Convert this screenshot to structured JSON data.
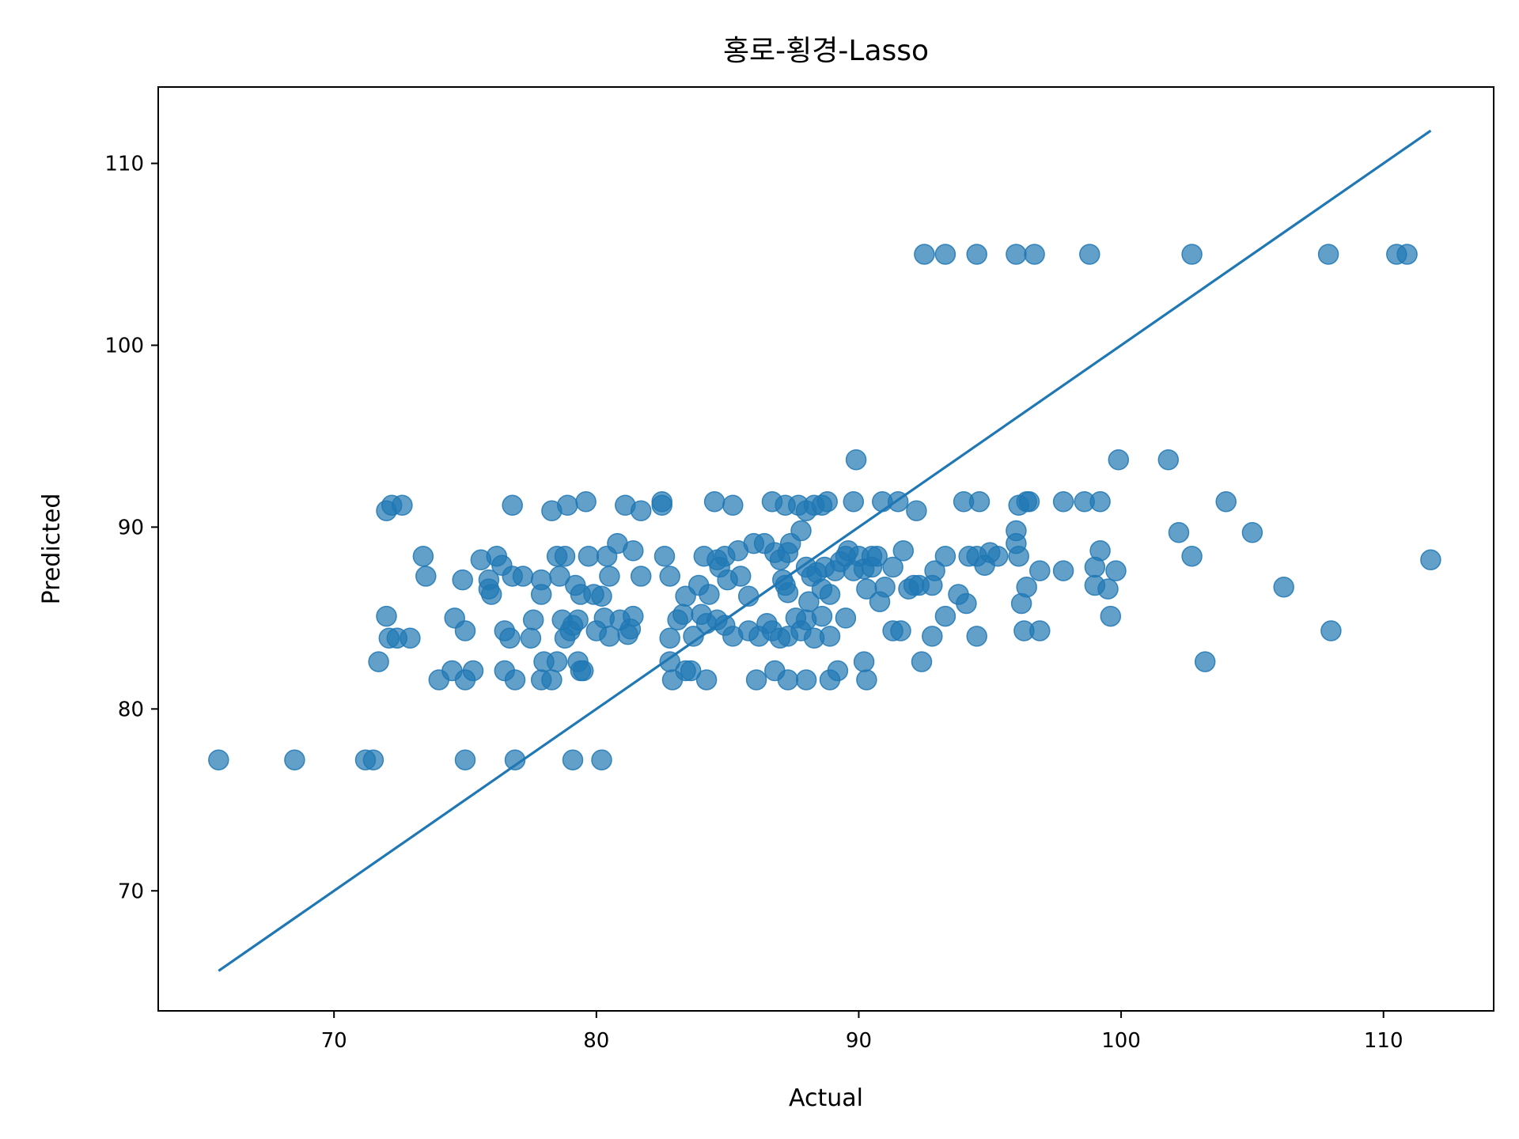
{
  "chart_data": {
    "type": "scatter",
    "title": "홍로-횡경-Lasso",
    "xlabel": "Actual",
    "ylabel": "Predicted",
    "xlim": [
      63.3,
      114.2
    ],
    "ylim": [
      63.4,
      114.2
    ],
    "xticks": [
      70,
      80,
      90,
      100,
      110
    ],
    "yticks": [
      70,
      80,
      90,
      100,
      110
    ],
    "grid": false,
    "colors": {
      "points": "#1f77b4",
      "line": "#1f77b4",
      "axes": "#000000"
    },
    "reference_line": {
      "from": [
        65.6,
        65.6
      ],
      "to": [
        111.8,
        111.8
      ]
    },
    "series": [
      {
        "points": [
          [
            65.6,
            77.2
          ],
          [
            68.5,
            77.2
          ],
          [
            71.2,
            77.2
          ],
          [
            71.5,
            77.2
          ],
          [
            75.0,
            77.2
          ],
          [
            76.9,
            77.2
          ],
          [
            79.1,
            77.2
          ],
          [
            80.2,
            77.2
          ],
          [
            92.5,
            105.0
          ],
          [
            93.3,
            105.0
          ],
          [
            94.5,
            105.0
          ],
          [
            96.0,
            105.0
          ],
          [
            96.7,
            105.0
          ],
          [
            98.8,
            105.0
          ],
          [
            102.7,
            105.0
          ],
          [
            107.9,
            105.0
          ],
          [
            110.5,
            105.0
          ],
          [
            110.9,
            105.0
          ],
          [
            72.0,
            90.9
          ],
          [
            72.2,
            91.2
          ],
          [
            72.6,
            91.2
          ],
          [
            76.8,
            91.2
          ],
          [
            78.3,
            90.9
          ],
          [
            78.9,
            91.2
          ],
          [
            79.6,
            91.4
          ],
          [
            81.1,
            91.2
          ],
          [
            81.7,
            90.9
          ],
          [
            82.5,
            91.2
          ],
          [
            82.5,
            91.4
          ],
          [
            84.5,
            91.4
          ],
          [
            85.2,
            91.2
          ],
          [
            86.7,
            91.4
          ],
          [
            87.2,
            91.2
          ],
          [
            87.7,
            91.2
          ],
          [
            88.0,
            90.9
          ],
          [
            88.3,
            91.2
          ],
          [
            88.6,
            91.2
          ],
          [
            88.8,
            91.4
          ],
          [
            89.8,
            91.4
          ],
          [
            90.9,
            91.4
          ],
          [
            91.5,
            91.4
          ],
          [
            92.2,
            90.9
          ],
          [
            94.0,
            91.4
          ],
          [
            94.6,
            91.4
          ],
          [
            96.1,
            91.2
          ],
          [
            96.4,
            91.4
          ],
          [
            96.5,
            91.4
          ],
          [
            97.8,
            91.4
          ],
          [
            98.6,
            91.4
          ],
          [
            99.2,
            91.4
          ],
          [
            104.0,
            91.4
          ],
          [
            89.9,
            93.7
          ],
          [
            99.9,
            93.7
          ],
          [
            101.8,
            93.7
          ],
          [
            73.4,
            88.4
          ],
          [
            73.5,
            87.3
          ],
          [
            74.9,
            87.1
          ],
          [
            75.6,
            88.2
          ],
          [
            75.9,
            87.1
          ],
          [
            75.9,
            86.6
          ],
          [
            76.0,
            86.3
          ],
          [
            76.2,
            88.4
          ],
          [
            76.4,
            87.9
          ],
          [
            76.8,
            87.3
          ],
          [
            77.2,
            87.3
          ],
          [
            77.9,
            87.1
          ],
          [
            77.9,
            86.3
          ],
          [
            78.5,
            88.4
          ],
          [
            78.6,
            87.3
          ],
          [
            78.8,
            88.4
          ],
          [
            79.2,
            86.8
          ],
          [
            79.4,
            86.3
          ],
          [
            79.7,
            88.4
          ],
          [
            79.9,
            86.3
          ],
          [
            80.2,
            86.2
          ],
          [
            80.4,
            88.4
          ],
          [
            80.5,
            87.3
          ],
          [
            80.8,
            89.1
          ],
          [
            81.4,
            88.7
          ],
          [
            81.7,
            87.3
          ],
          [
            82.6,
            88.4
          ],
          [
            82.8,
            87.3
          ],
          [
            83.4,
            86.2
          ],
          [
            83.9,
            86.8
          ],
          [
            84.1,
            88.4
          ],
          [
            84.3,
            86.3
          ],
          [
            84.6,
            88.2
          ],
          [
            84.7,
            87.8
          ],
          [
            84.9,
            88.4
          ],
          [
            85.0,
            87.1
          ],
          [
            85.4,
            88.7
          ],
          [
            85.5,
            87.3
          ],
          [
            85.8,
            86.2
          ],
          [
            86.0,
            89.1
          ],
          [
            86.4,
            89.1
          ],
          [
            86.8,
            88.6
          ],
          [
            87.0,
            88.2
          ],
          [
            87.1,
            87.1
          ],
          [
            87.2,
            86.8
          ],
          [
            87.3,
            86.4
          ],
          [
            87.3,
            88.6
          ],
          [
            87.4,
            89.1
          ],
          [
            87.8,
            89.8
          ],
          [
            88.0,
            87.8
          ],
          [
            88.2,
            87.3
          ],
          [
            88.4,
            87.5
          ],
          [
            88.6,
            86.6
          ],
          [
            88.7,
            87.8
          ],
          [
            88.9,
            86.3
          ],
          [
            89.1,
            87.6
          ],
          [
            89.3,
            88.1
          ],
          [
            89.5,
            88.4
          ],
          [
            89.6,
            88.7
          ],
          [
            89.8,
            87.6
          ],
          [
            90.0,
            88.4
          ],
          [
            90.2,
            87.7
          ],
          [
            90.3,
            86.6
          ],
          [
            90.5,
            88.4
          ],
          [
            90.5,
            87.8
          ],
          [
            90.7,
            88.4
          ],
          [
            90.8,
            85.9
          ],
          [
            91.0,
            86.7
          ],
          [
            91.3,
            87.8
          ],
          [
            91.7,
            88.7
          ],
          [
            91.9,
            86.6
          ],
          [
            92.1,
            86.8
          ],
          [
            92.3,
            86.8
          ],
          [
            92.8,
            86.8
          ],
          [
            92.9,
            87.6
          ],
          [
            93.3,
            88.4
          ],
          [
            93.8,
            86.3
          ],
          [
            94.1,
            85.8
          ],
          [
            94.2,
            88.4
          ],
          [
            94.5,
            88.4
          ],
          [
            94.8,
            87.9
          ],
          [
            95.0,
            88.6
          ],
          [
            95.3,
            88.4
          ],
          [
            96.0,
            89.8
          ],
          [
            96.0,
            89.1
          ],
          [
            96.1,
            88.4
          ],
          [
            96.2,
            85.8
          ],
          [
            96.4,
            86.7
          ],
          [
            96.9,
            87.6
          ],
          [
            97.8,
            87.6
          ],
          [
            99.0,
            87.8
          ],
          [
            99.0,
            86.8
          ],
          [
            99.2,
            88.7
          ],
          [
            99.5,
            86.6
          ],
          [
            99.8,
            87.6
          ],
          [
            102.2,
            89.7
          ],
          [
            102.7,
            88.4
          ],
          [
            105.0,
            89.7
          ],
          [
            106.2,
            86.7
          ],
          [
            111.8,
            88.2
          ],
          [
            72.0,
            85.1
          ],
          [
            72.1,
            83.9
          ],
          [
            72.4,
            83.9
          ],
          [
            72.9,
            83.9
          ],
          [
            71.7,
            82.6
          ],
          [
            74.6,
            85.0
          ],
          [
            75.0,
            84.3
          ],
          [
            76.5,
            84.3
          ],
          [
            76.7,
            83.9
          ],
          [
            77.6,
            84.9
          ],
          [
            77.5,
            83.9
          ],
          [
            78.7,
            84.9
          ],
          [
            78.8,
            83.9
          ],
          [
            79.0,
            84.3
          ],
          [
            79.1,
            84.6
          ],
          [
            79.3,
            84.9
          ],
          [
            80.0,
            84.3
          ],
          [
            80.3,
            85.0
          ],
          [
            80.5,
            84.0
          ],
          [
            80.9,
            84.9
          ],
          [
            81.2,
            84.1
          ],
          [
            81.3,
            84.4
          ],
          [
            81.4,
            85.1
          ],
          [
            82.8,
            83.9
          ],
          [
            83.1,
            84.9
          ],
          [
            83.3,
            85.2
          ],
          [
            83.7,
            84.0
          ],
          [
            84.0,
            85.2
          ],
          [
            84.2,
            84.7
          ],
          [
            84.6,
            84.9
          ],
          [
            84.9,
            84.6
          ],
          [
            85.2,
            84.0
          ],
          [
            85.8,
            84.3
          ],
          [
            86.2,
            84.0
          ],
          [
            86.5,
            84.7
          ],
          [
            86.7,
            84.3
          ],
          [
            87.0,
            83.9
          ],
          [
            87.3,
            84.0
          ],
          [
            87.6,
            85.0
          ],
          [
            87.8,
            84.3
          ],
          [
            88.0,
            84.9
          ],
          [
            88.1,
            85.9
          ],
          [
            88.3,
            83.9
          ],
          [
            88.6,
            85.1
          ],
          [
            88.9,
            84.0
          ],
          [
            89.5,
            85.0
          ],
          [
            91.3,
            84.3
          ],
          [
            91.6,
            84.3
          ],
          [
            92.8,
            84.0
          ],
          [
            93.3,
            85.1
          ],
          [
            94.5,
            84.0
          ],
          [
            96.3,
            84.3
          ],
          [
            96.9,
            84.3
          ],
          [
            99.6,
            85.1
          ],
          [
            108.0,
            84.3
          ],
          [
            74.0,
            81.6
          ],
          [
            74.5,
            82.1
          ],
          [
            75.0,
            81.6
          ],
          [
            75.3,
            82.1
          ],
          [
            76.5,
            82.1
          ],
          [
            76.9,
            81.6
          ],
          [
            77.9,
            81.6
          ],
          [
            78.0,
            82.6
          ],
          [
            78.3,
            81.6
          ],
          [
            78.5,
            82.6
          ],
          [
            79.3,
            82.6
          ],
          [
            79.4,
            82.1
          ],
          [
            79.5,
            82.1
          ],
          [
            82.8,
            82.6
          ],
          [
            82.9,
            81.6
          ],
          [
            83.4,
            82.1
          ],
          [
            83.6,
            82.1
          ],
          [
            84.2,
            81.6
          ],
          [
            86.1,
            81.6
          ],
          [
            86.8,
            82.1
          ],
          [
            87.3,
            81.6
          ],
          [
            88.0,
            81.6
          ],
          [
            88.9,
            81.6
          ],
          [
            89.2,
            82.1
          ],
          [
            90.2,
            82.6
          ],
          [
            90.3,
            81.6
          ],
          [
            92.4,
            82.6
          ],
          [
            103.2,
            82.6
          ]
        ]
      }
    ]
  }
}
